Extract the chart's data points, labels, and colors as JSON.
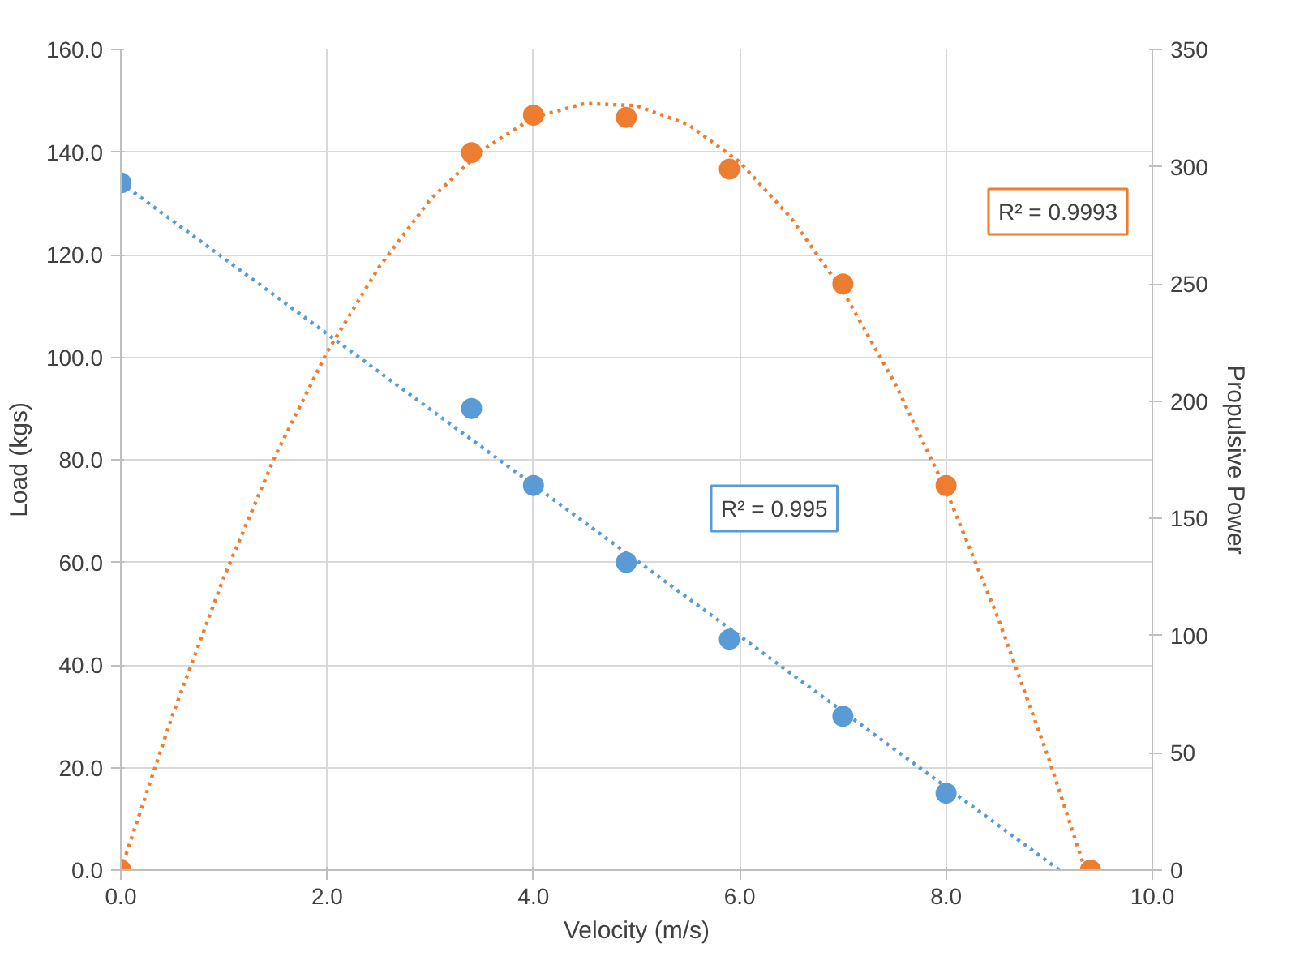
{
  "chart_data": {
    "type": "scatter",
    "xlabel": "Velocity (m/s)",
    "ylabel": "Load (kgs)",
    "y2label": "Propulsive Power",
    "xlim": [
      0,
      10
    ],
    "xticks": [
      {
        "value": 0,
        "label": "0.0"
      },
      {
        "value": 2,
        "label": "2.0"
      },
      {
        "value": 4,
        "label": "4.0"
      },
      {
        "value": 6,
        "label": "6.0"
      },
      {
        "value": 8,
        "label": "8.0"
      },
      {
        "value": 10,
        "label": "10.0"
      }
    ],
    "ylim": [
      0,
      160
    ],
    "yticks": [
      {
        "value": 0,
        "label": "0.0"
      },
      {
        "value": 20,
        "label": "20.0"
      },
      {
        "value": 40,
        "label": "40.0"
      },
      {
        "value": 60,
        "label": "60.0"
      },
      {
        "value": 80,
        "label": "80.0"
      },
      {
        "value": 100,
        "label": "100.0"
      },
      {
        "value": 120,
        "label": "120.0"
      },
      {
        "value": 140,
        "label": "140.0"
      },
      {
        "value": 160,
        "label": "160.0"
      }
    ],
    "y2lim": [
      0,
      350
    ],
    "y2ticks": [
      0,
      50,
      100,
      150,
      200,
      250,
      300,
      350
    ],
    "grid": true,
    "series": [
      {
        "type": "line",
        "line_style": "dotted",
        "marker": "none",
        "color": "#5b9bd5",
        "x": [
          0,
          9.1
        ],
        "values": [
          134,
          0
        ]
      },
      {
        "type": "line",
        "line_style": "dotted",
        "marker": "none",
        "color": "#ed7d31",
        "axis": "y2",
        "x": [
          0,
          0.5,
          1,
          1.5,
          2,
          2.5,
          3,
          3.5,
          4,
          4.5,
          5,
          5.5,
          6,
          6.5,
          7,
          7.5,
          8,
          8.5,
          9,
          9.35
        ],
        "values": [
          0,
          66,
          125,
          177,
          221,
          257,
          286,
          307,
          321,
          327,
          326,
          318,
          302,
          278,
          247,
          208,
          162,
          108,
          47,
          0
        ]
      },
      {
        "marker": "circle",
        "color": "#5b9bd5",
        "x": [
          0,
          3.4,
          4,
          4.9,
          5.9,
          7,
          8
        ],
        "values": [
          134,
          90,
          75,
          60,
          45,
          30,
          15
        ]
      },
      {
        "marker": "circle",
        "color": "#ed7d31",
        "axis": "y2",
        "x": [
          0,
          3.4,
          4,
          4.9,
          5.9,
          7,
          8,
          9.4
        ],
        "values": [
          0,
          306,
          322,
          321,
          299,
          250,
          164,
          0
        ]
      }
    ],
    "annotations": [
      "R² = 0.995",
      "R² = 0.9993"
    ]
  }
}
